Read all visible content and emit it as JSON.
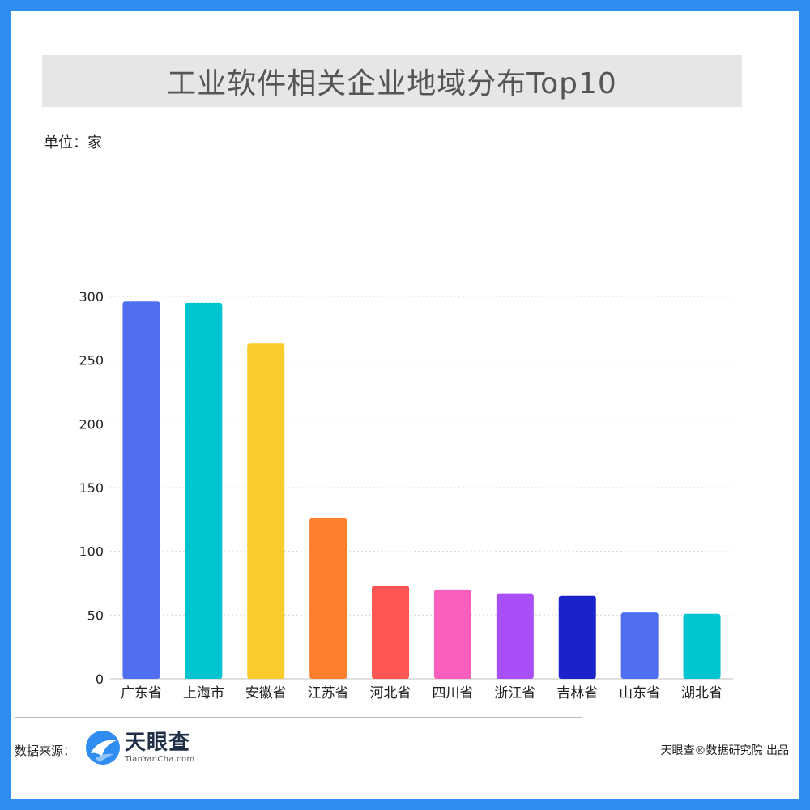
{
  "title": "工业软件相关企业地域分布Top10",
  "unit_label": "单位：家",
  "footer": {
    "source_label": "数据来源：",
    "logo_cn": "天眼查",
    "logo_en": "TianYanCha.com",
    "credit": "天眼查®数据研究院 出品"
  },
  "colors": {
    "frame": "#2f8cf0",
    "title_bg": "#e6e6e6"
  },
  "chart_data": {
    "type": "bar",
    "title": "工业软件相关企业地域分布Top10",
    "ylabel": "单位：家",
    "categories": [
      "广东省",
      "上海市",
      "安徽省",
      "江苏省",
      "河北省",
      "四川省",
      "浙江省",
      "吉林省",
      "山东省",
      "湖北省"
    ],
    "values": [
      296,
      295,
      263,
      126,
      73,
      70,
      67,
      65,
      52,
      51
    ],
    "colors": [
      "#4f6ef0",
      "#00c4cf",
      "#fccb2c",
      "#fd7f2e",
      "#fe5555",
      "#fb5fbd",
      "#a94ffa",
      "#1a23c9",
      "#4f6ef0",
      "#00c4cf"
    ],
    "ylim": [
      0,
      300
    ],
    "yticks": [
      0,
      50,
      100,
      150,
      200,
      250,
      300
    ],
    "grid": true,
    "legend": "none"
  }
}
